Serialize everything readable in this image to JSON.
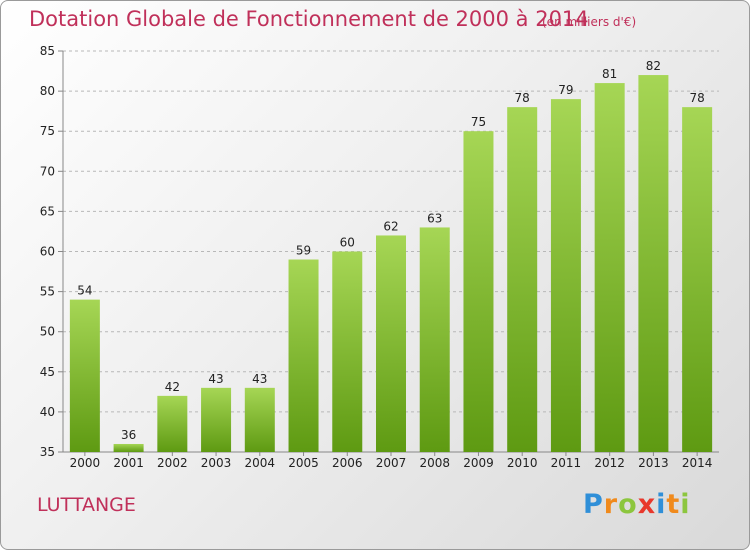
{
  "header": {
    "title": "Dotation Globale de Fonctionnement de 2000 à 2014",
    "unit": "(en milliers d'€)"
  },
  "commune": "LUTTANGE",
  "logo": {
    "letters": [
      "P",
      "r",
      "o",
      "x",
      "i",
      "t",
      "i"
    ],
    "colors": [
      "#2f8fd8",
      "#f08a1c",
      "#8cc63e",
      "#e8382c",
      "#2f8fd8",
      "#f08a1c",
      "#8cc63e"
    ]
  },
  "colors": {
    "bar_top": "#a6d655",
    "bar_bottom": "#5e9a12",
    "title": "#c0305a",
    "grid": "#b8b8b8",
    "axis_text": "#222222"
  },
  "chart_data": {
    "type": "bar",
    "title": "Dotation Globale de Fonctionnement de 2000 à 2014",
    "categories": [
      "2000",
      "2001",
      "2002",
      "2003",
      "2004",
      "2005",
      "2006",
      "2007",
      "2008",
      "2009",
      "2010",
      "2011",
      "2012",
      "2013",
      "2014"
    ],
    "values": [
      54,
      36,
      42,
      43,
      43,
      59,
      60,
      62,
      63,
      75,
      78,
      79,
      81,
      82,
      78
    ],
    "ylim": [
      35,
      85
    ],
    "yticks": [
      35,
      40,
      45,
      50,
      55,
      60,
      65,
      70,
      75,
      80,
      85
    ],
    "grid": true,
    "xlabel": "",
    "ylabel": ""
  }
}
